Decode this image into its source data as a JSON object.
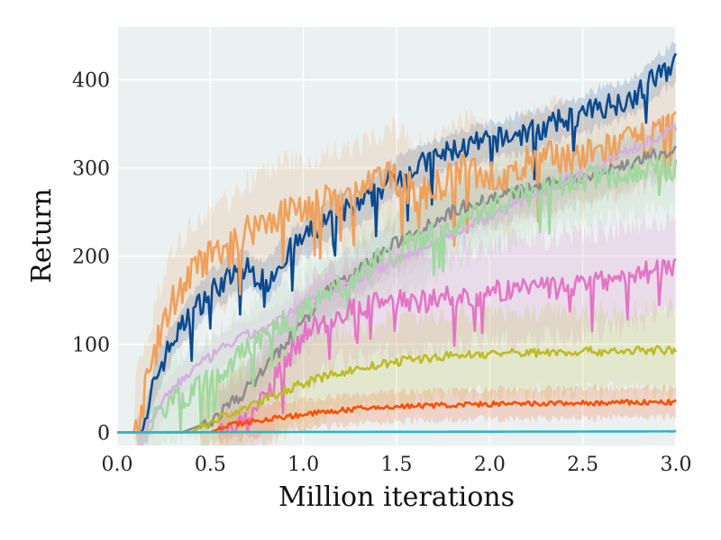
{
  "chart_data": {
    "type": "line",
    "xlabel": "Million iterations",
    "ylabel": "Return",
    "xlim": [
      0.0,
      3.0
    ],
    "ylim": [
      -15,
      460
    ],
    "xticks": [
      "0.0",
      "0.5",
      "1.0",
      "1.5",
      "2.0",
      "2.5",
      "3.0"
    ],
    "yticks": [
      "0",
      "100",
      "200",
      "300",
      "400"
    ],
    "grid": true,
    "background": "#ebf0f1",
    "series": [
      {
        "color": "#0a4a8f",
        "band": 25,
        "noise": 14,
        "points": [
          [
            0.0,
            0
          ],
          [
            0.13,
            0
          ],
          [
            0.16,
            10
          ],
          [
            0.2,
            60
          ],
          [
            0.3,
            105
          ],
          [
            0.4,
            135
          ],
          [
            0.5,
            160
          ],
          [
            0.6,
            175
          ],
          [
            0.7,
            185
          ],
          [
            0.8,
            170
          ],
          [
            0.9,
            200
          ],
          [
            1.0,
            220
          ],
          [
            1.1,
            235
          ],
          [
            1.2,
            250
          ],
          [
            1.3,
            255
          ],
          [
            1.4,
            275
          ],
          [
            1.5,
            290
          ],
          [
            1.6,
            300
          ],
          [
            1.7,
            310
          ],
          [
            1.8,
            320
          ],
          [
            1.9,
            325
          ],
          [
            2.0,
            330
          ],
          [
            2.1,
            335
          ],
          [
            2.2,
            340
          ],
          [
            2.3,
            345
          ],
          [
            2.4,
            355
          ],
          [
            2.5,
            360
          ],
          [
            2.6,
            370
          ],
          [
            2.7,
            375
          ],
          [
            2.8,
            385
          ],
          [
            2.9,
            405
          ],
          [
            3.0,
            420
          ]
        ]
      },
      {
        "color": "#f0a05a",
        "band": 65,
        "noise": 20,
        "points": [
          [
            0.0,
            0
          ],
          [
            0.1,
            0
          ],
          [
            0.15,
            45
          ],
          [
            0.2,
            90
          ],
          [
            0.3,
            150
          ],
          [
            0.4,
            180
          ],
          [
            0.5,
            200
          ],
          [
            0.6,
            205
          ],
          [
            0.7,
            230
          ],
          [
            0.8,
            240
          ],
          [
            0.9,
            250
          ],
          [
            1.0,
            255
          ],
          [
            1.1,
            260
          ],
          [
            1.2,
            265
          ],
          [
            1.3,
            270
          ],
          [
            1.4,
            285
          ],
          [
            1.5,
            290
          ],
          [
            1.6,
            270
          ],
          [
            1.7,
            275
          ],
          [
            1.8,
            290
          ],
          [
            1.9,
            300
          ],
          [
            2.0,
            290
          ],
          [
            2.1,
            285
          ],
          [
            2.2,
            305
          ],
          [
            2.3,
            310
          ],
          [
            2.4,
            315
          ],
          [
            2.5,
            310
          ],
          [
            2.6,
            320
          ],
          [
            2.7,
            325
          ],
          [
            2.8,
            330
          ],
          [
            2.9,
            340
          ],
          [
            3.0,
            350
          ]
        ]
      },
      {
        "color": "#8c8c8c",
        "band": 35,
        "noise": 8,
        "points": [
          [
            0.0,
            0
          ],
          [
            0.35,
            0
          ],
          [
            0.5,
            12
          ],
          [
            0.6,
            30
          ],
          [
            0.7,
            50
          ],
          [
            0.8,
            75
          ],
          [
            0.9,
            100
          ],
          [
            1.0,
            125
          ],
          [
            1.1,
            155
          ],
          [
            1.2,
            170
          ],
          [
            1.3,
            185
          ],
          [
            1.4,
            200
          ],
          [
            1.5,
            215
          ],
          [
            1.6,
            228
          ],
          [
            1.7,
            240
          ],
          [
            1.8,
            250
          ],
          [
            1.9,
            260
          ],
          [
            2.0,
            265
          ],
          [
            2.1,
            270
          ],
          [
            2.2,
            275
          ],
          [
            2.3,
            280
          ],
          [
            2.4,
            285
          ],
          [
            2.5,
            290
          ],
          [
            2.6,
            295
          ],
          [
            2.7,
            302
          ],
          [
            2.8,
            308
          ],
          [
            2.9,
            315
          ],
          [
            3.0,
            320
          ]
        ]
      },
      {
        "color": "#d4b0de",
        "band": 22,
        "noise": 6,
        "points": [
          [
            0.0,
            0
          ],
          [
            0.15,
            0
          ],
          [
            0.2,
            20
          ],
          [
            0.3,
            50
          ],
          [
            0.4,
            70
          ],
          [
            0.5,
            85
          ],
          [
            0.6,
            100
          ],
          [
            0.7,
            110
          ],
          [
            0.8,
            118
          ],
          [
            0.9,
            130
          ],
          [
            1.0,
            145
          ],
          [
            1.1,
            155
          ],
          [
            1.2,
            165
          ],
          [
            1.3,
            175
          ],
          [
            1.4,
            185
          ],
          [
            1.5,
            195
          ],
          [
            1.6,
            205
          ],
          [
            1.7,
            215
          ],
          [
            1.8,
            225
          ],
          [
            1.9,
            235
          ],
          [
            2.0,
            245
          ],
          [
            2.1,
            255
          ],
          [
            2.2,
            265
          ],
          [
            2.3,
            275
          ],
          [
            2.4,
            285
          ],
          [
            2.5,
            295
          ],
          [
            2.6,
            305
          ],
          [
            2.7,
            315
          ],
          [
            2.8,
            325
          ],
          [
            2.9,
            335
          ],
          [
            3.0,
            345
          ]
        ]
      },
      {
        "color": "#a0d8a0",
        "band": 55,
        "noise": 14,
        "points": [
          [
            0.0,
            0
          ],
          [
            0.15,
            0
          ],
          [
            0.2,
            20
          ],
          [
            0.3,
            35
          ],
          [
            0.4,
            45
          ],
          [
            0.5,
            60
          ],
          [
            0.6,
            75
          ],
          [
            0.7,
            95
          ],
          [
            0.8,
            110
          ],
          [
            0.9,
            125
          ],
          [
            1.0,
            140
          ],
          [
            1.1,
            150
          ],
          [
            1.2,
            165
          ],
          [
            1.3,
            180
          ],
          [
            1.4,
            195
          ],
          [
            1.5,
            205
          ],
          [
            1.6,
            215
          ],
          [
            1.7,
            225
          ],
          [
            1.8,
            235
          ],
          [
            1.9,
            245
          ],
          [
            2.0,
            255
          ],
          [
            2.1,
            265
          ],
          [
            2.2,
            270
          ],
          [
            2.3,
            275
          ],
          [
            2.4,
            280
          ],
          [
            2.5,
            285
          ],
          [
            2.6,
            290
          ],
          [
            2.7,
            292
          ],
          [
            2.8,
            295
          ],
          [
            2.9,
            298
          ],
          [
            3.0,
            300
          ]
        ]
      },
      {
        "color": "#e474c4",
        "band": 65,
        "noise": 14,
        "points": [
          [
            0.0,
            0
          ],
          [
            0.55,
            0
          ],
          [
            0.6,
            5
          ],
          [
            0.7,
            15
          ],
          [
            0.8,
            40
          ],
          [
            0.9,
            80
          ],
          [
            1.0,
            110
          ],
          [
            1.1,
            125
          ],
          [
            1.2,
            135
          ],
          [
            1.3,
            140
          ],
          [
            1.4,
            145
          ],
          [
            1.5,
            148
          ],
          [
            1.6,
            150
          ],
          [
            1.7,
            150
          ],
          [
            1.8,
            152
          ],
          [
            1.9,
            155
          ],
          [
            2.0,
            158
          ],
          [
            2.1,
            160
          ],
          [
            2.2,
            162
          ],
          [
            2.3,
            163
          ],
          [
            2.4,
            165
          ],
          [
            2.5,
            168
          ],
          [
            2.6,
            172
          ],
          [
            2.7,
            176
          ],
          [
            2.8,
            180
          ],
          [
            2.9,
            185
          ],
          [
            3.0,
            190
          ]
        ]
      },
      {
        "color": "#bcbd22",
        "band": 55,
        "noise": 5,
        "points": [
          [
            0.0,
            0
          ],
          [
            0.4,
            0
          ],
          [
            0.5,
            12
          ],
          [
            0.6,
            20
          ],
          [
            0.7,
            28
          ],
          [
            0.8,
            38
          ],
          [
            0.9,
            48
          ],
          [
            1.0,
            55
          ],
          [
            1.1,
            62
          ],
          [
            1.2,
            68
          ],
          [
            1.3,
            72
          ],
          [
            1.4,
            76
          ],
          [
            1.5,
            80
          ],
          [
            1.6,
            83
          ],
          [
            1.7,
            85
          ],
          [
            1.8,
            87
          ],
          [
            1.9,
            88
          ],
          [
            2.0,
            89
          ],
          [
            2.1,
            90
          ],
          [
            2.2,
            90
          ],
          [
            2.3,
            91
          ],
          [
            2.4,
            91
          ],
          [
            2.5,
            92
          ],
          [
            2.6,
            92
          ],
          [
            2.7,
            92
          ],
          [
            2.8,
            93
          ],
          [
            2.9,
            93
          ],
          [
            3.0,
            93
          ]
        ]
      },
      {
        "color": "#ff4d00",
        "band": 20,
        "noise": 3,
        "points": [
          [
            0.0,
            0
          ],
          [
            0.5,
            0
          ],
          [
            0.6,
            8
          ],
          [
            0.8,
            15
          ],
          [
            1.0,
            20
          ],
          [
            1.2,
            25
          ],
          [
            1.4,
            28
          ],
          [
            1.6,
            30
          ],
          [
            1.8,
            31
          ],
          [
            2.0,
            32
          ],
          [
            2.2,
            32
          ],
          [
            2.4,
            33
          ],
          [
            2.6,
            33
          ],
          [
            2.8,
            34
          ],
          [
            3.0,
            34
          ]
        ]
      },
      {
        "color": "#2ab7c8",
        "band": 2,
        "noise": 0.6,
        "points": [
          [
            0.0,
            0
          ],
          [
            3.0,
            1
          ]
        ]
      }
    ]
  }
}
